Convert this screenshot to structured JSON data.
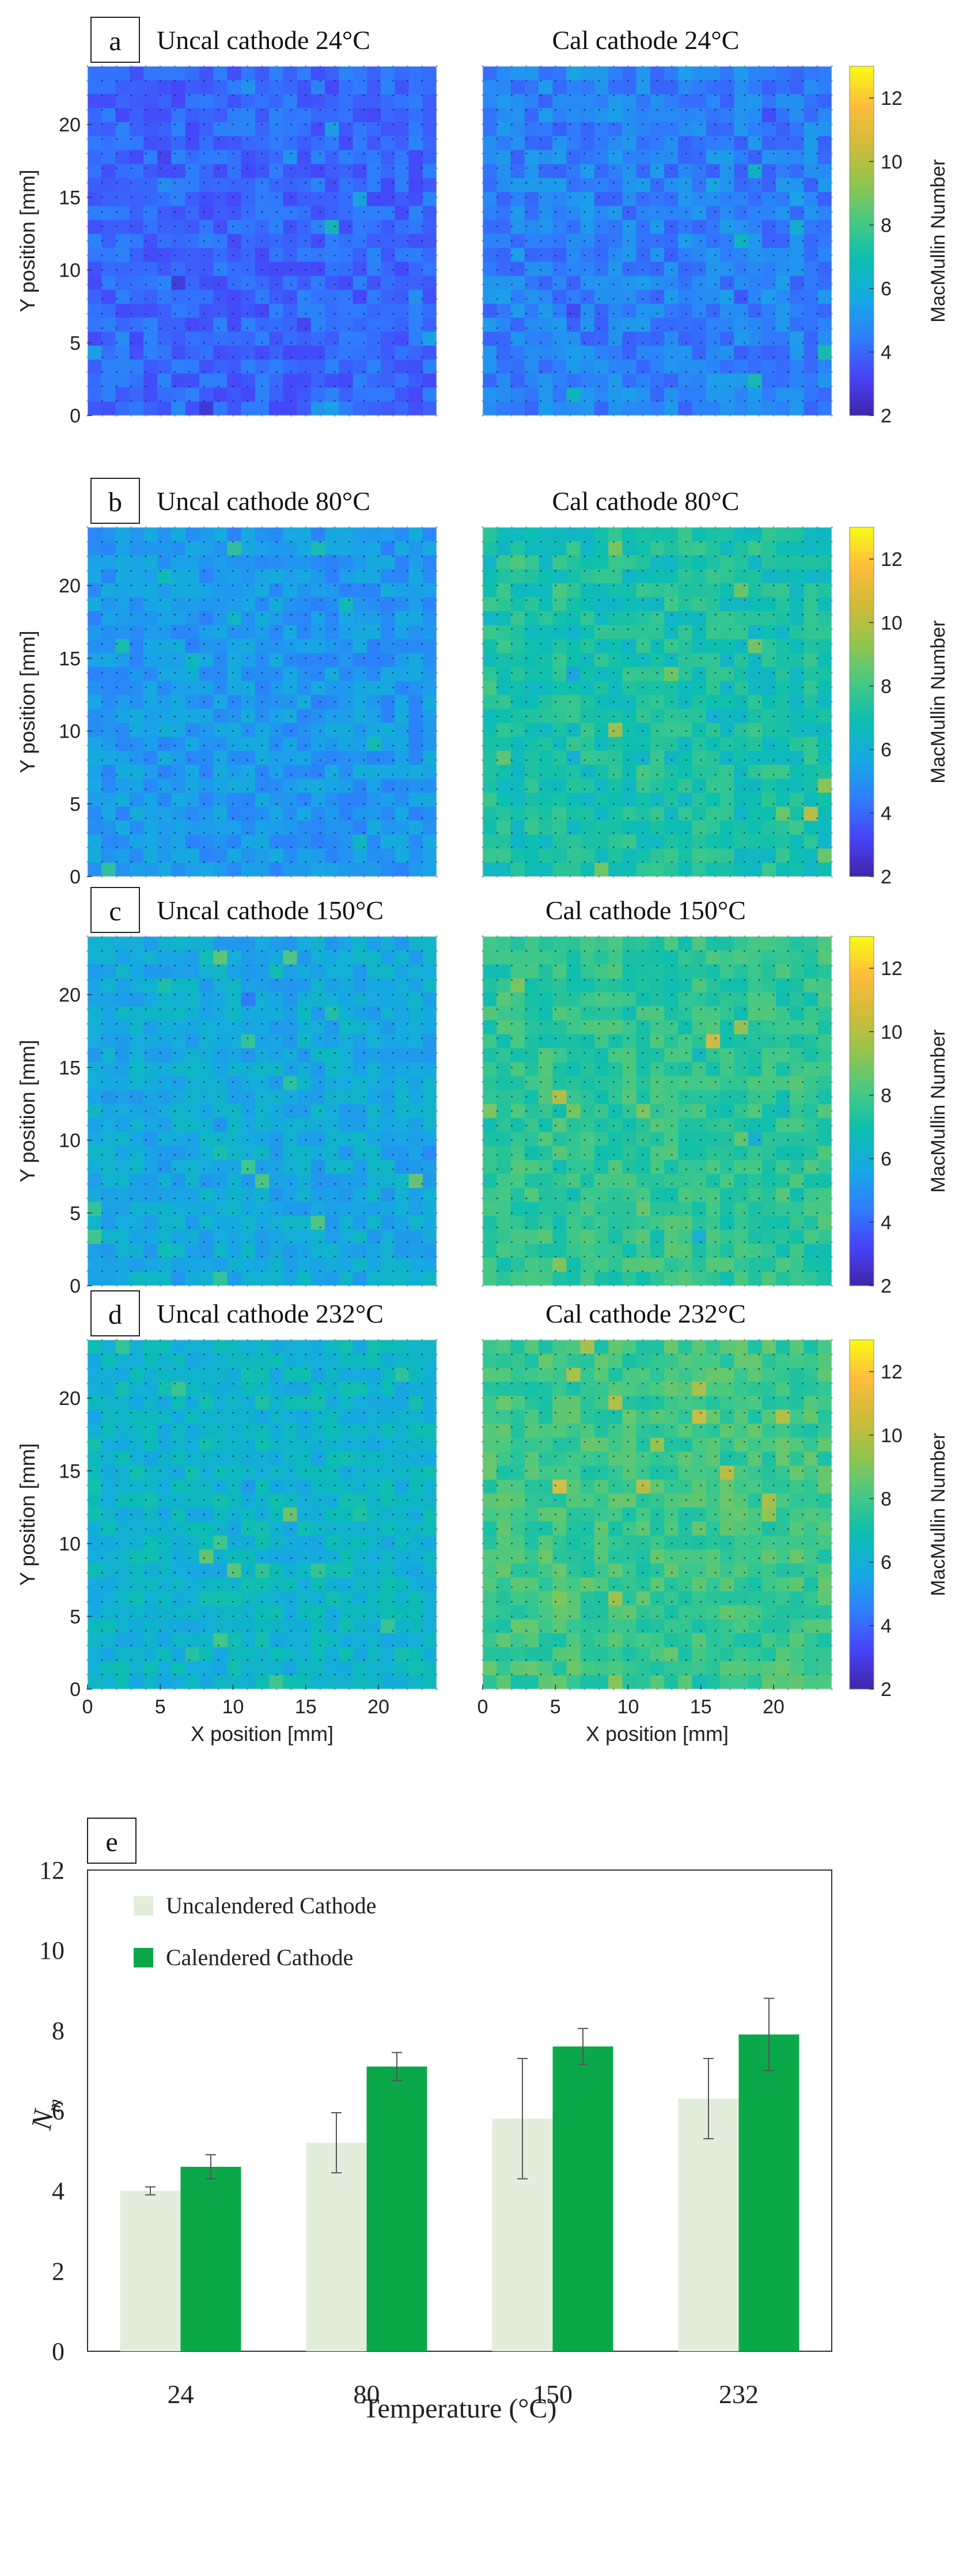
{
  "figure": {
    "colormap": [
      "#3e26a8",
      "#4743f8",
      "#2f7efc",
      "#17a9e3",
      "#0bbeb0",
      "#47c983",
      "#93c54d",
      "#d1bb3a",
      "#fdbd3c",
      "#f9fb15"
    ],
    "background": "#ffffff"
  },
  "chart_data": [
    {
      "type": "heatmap",
      "panel_label": "a",
      "left_title": "Uncal cathode 24°C",
      "right_title": "Cal cathode 24°C",
      "left_mean": 4.0,
      "right_mean": 4.6,
      "ylabel": "Y position [mm]",
      "xlabel": "",
      "show_xaxis": false,
      "x_ticks": [
        0,
        5,
        10,
        15,
        20
      ],
      "y_ticks": [
        0,
        5,
        10,
        15,
        20
      ],
      "xlim": [
        0,
        24
      ],
      "ylim": [
        0,
        24
      ],
      "colorbar": {
        "label": "MacMullin Number",
        "ticks": [
          2,
          4,
          6,
          8,
          10,
          12
        ],
        "range": [
          2,
          13
        ]
      }
    },
    {
      "type": "heatmap",
      "panel_label": "b",
      "left_title": "Uncal cathode 80°C",
      "right_title": "Cal cathode 80°C",
      "left_mean": 5.2,
      "right_mean": 7.1,
      "ylabel": "Y position [mm]",
      "xlabel": "",
      "show_xaxis": false,
      "x_ticks": [
        0,
        5,
        10,
        15,
        20
      ],
      "y_ticks": [
        0,
        5,
        10,
        15,
        20
      ],
      "xlim": [
        0,
        24
      ],
      "ylim": [
        0,
        24
      ],
      "colorbar": {
        "label": "MacMullin Number",
        "ticks": [
          2,
          4,
          6,
          8,
          10,
          12
        ],
        "range": [
          2,
          13
        ]
      }
    },
    {
      "type": "heatmap",
      "panel_label": "c",
      "left_title": "Uncal cathode 150°C",
      "right_title": "Cal cathode 150°C",
      "left_mean": 5.8,
      "right_mean": 7.6,
      "ylabel": "Y position [mm]",
      "xlabel": "",
      "show_xaxis": false,
      "x_ticks": [
        0,
        5,
        10,
        15,
        20
      ],
      "y_ticks": [
        0,
        5,
        10,
        15,
        20
      ],
      "xlim": [
        0,
        24
      ],
      "ylim": [
        0,
        24
      ],
      "colorbar": {
        "label": "MacMullin Number",
        "ticks": [
          2,
          4,
          6,
          8,
          10,
          12
        ],
        "range": [
          2,
          13
        ]
      }
    },
    {
      "type": "heatmap",
      "panel_label": "d",
      "left_title": "Uncal cathode 232°C",
      "right_title": "Cal cathode 232°C",
      "left_mean": 6.3,
      "right_mean": 7.9,
      "ylabel": "Y position [mm]",
      "xlabel": "X position [mm]",
      "show_xaxis": true,
      "x_ticks": [
        0,
        5,
        10,
        15,
        20
      ],
      "y_ticks": [
        0,
        5,
        10,
        15,
        20
      ],
      "xlim": [
        0,
        24
      ],
      "ylim": [
        0,
        24
      ],
      "colorbar": {
        "label": "MacMullin Number",
        "ticks": [
          2,
          4,
          6,
          8,
          10,
          12
        ],
        "range": [
          2,
          13
        ]
      }
    },
    {
      "type": "bar",
      "panel_label": "e",
      "categories": [
        "24",
        "80",
        "150",
        "232"
      ],
      "series": [
        {
          "name": "Uncalendered Cathode",
          "values": [
            4.0,
            5.2,
            5.8,
            6.3
          ],
          "errors": [
            0.1,
            0.75,
            1.5,
            1.0
          ],
          "color": "#e2eedb"
        },
        {
          "name": "Calendered Cathode",
          "values": [
            4.6,
            7.1,
            7.6,
            7.9
          ],
          "errors": [
            0.3,
            0.35,
            0.45,
            0.9
          ],
          "color": "#0ba84a"
        }
      ],
      "xlabel": "Temperature (°C)",
      "ylabel": "N",
      "ylabel_sub": "m",
      "ylim": [
        0,
        12
      ],
      "y_ticks": [
        0,
        2,
        4,
        6,
        8,
        10,
        12
      ]
    }
  ]
}
